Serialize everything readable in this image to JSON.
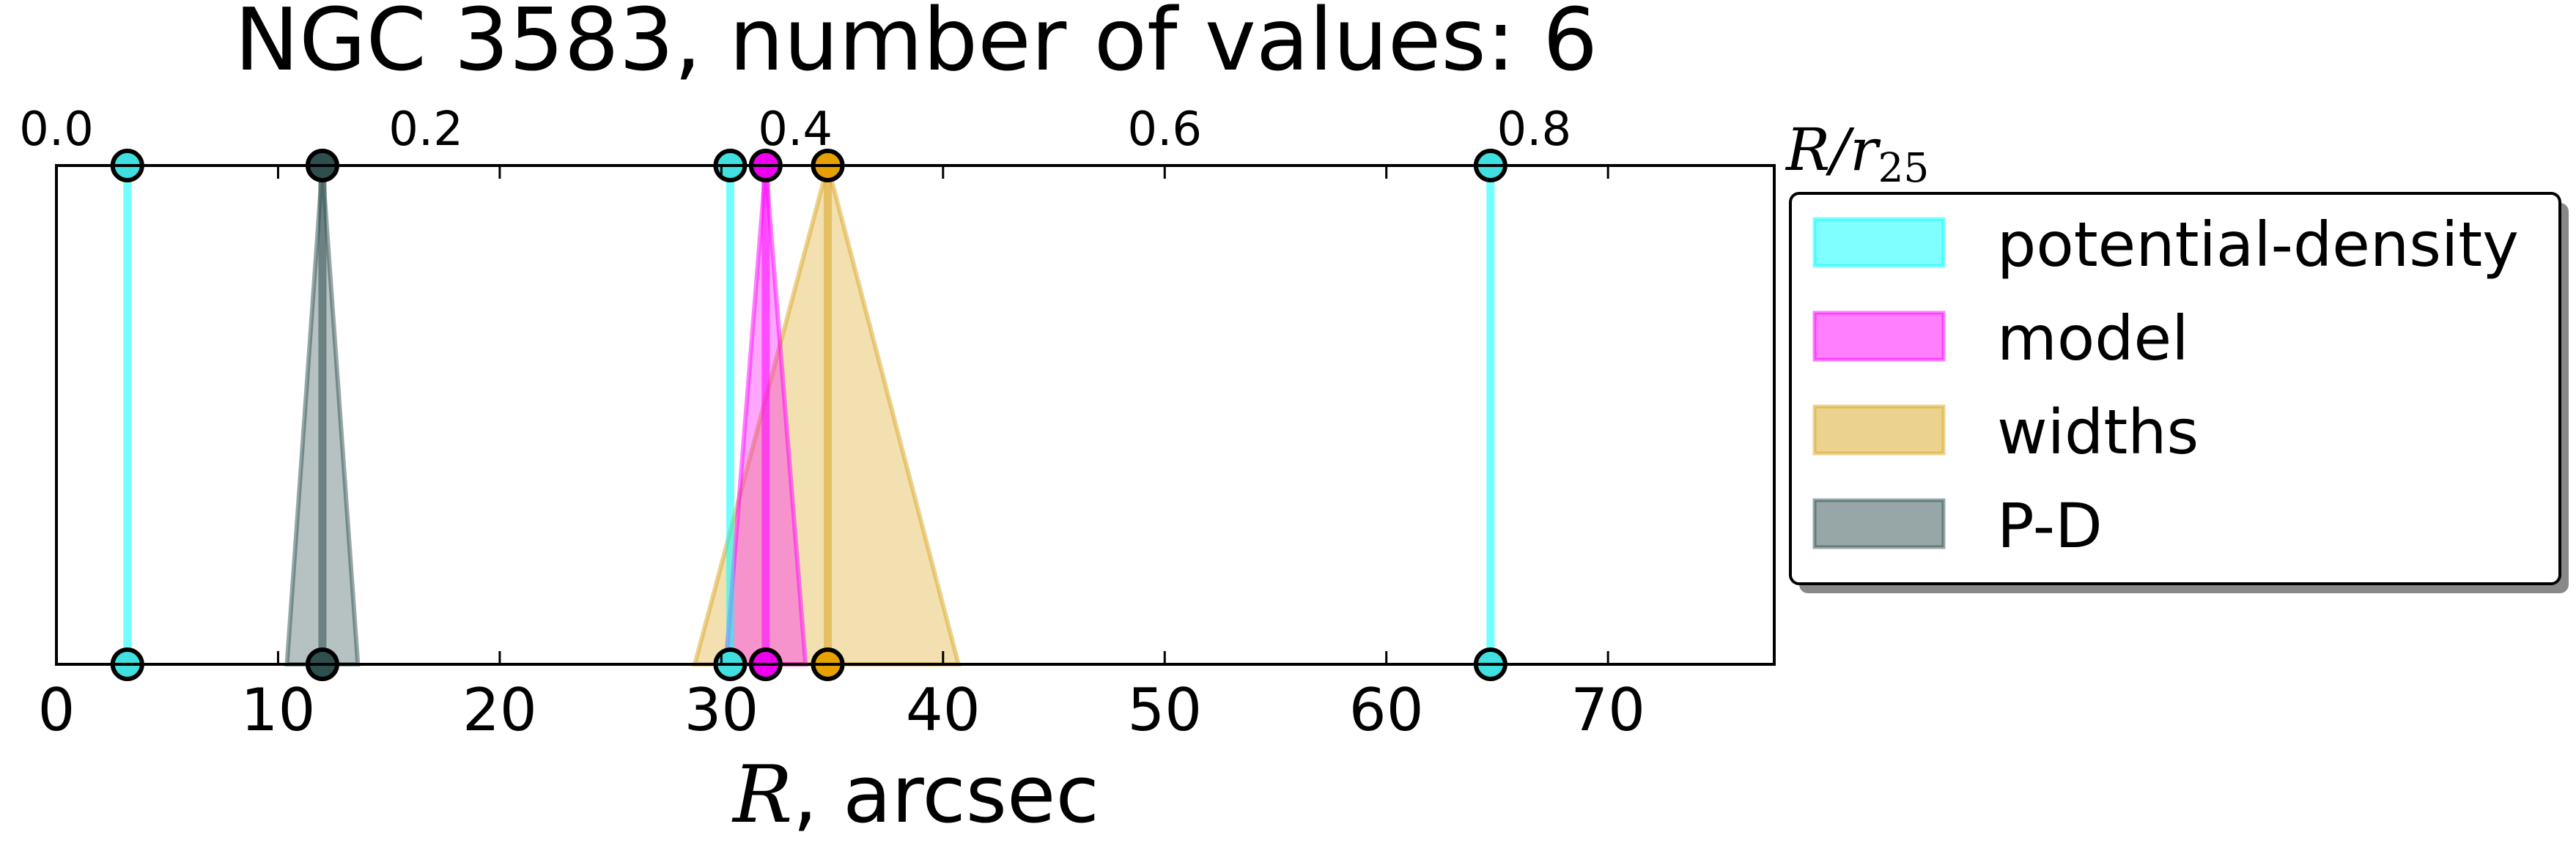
{
  "chart_data": {
    "type": "scatter",
    "title": "NGC 3583, number of values: 6",
    "xlabel": "R, arcsec",
    "x2label": "R/r25",
    "x2label_main": "R/r",
    "x2label_sub": "25",
    "xlim": [
      0,
      77.5
    ],
    "x2lim": [
      0,
      0.93
    ],
    "xticks": [
      0,
      10,
      20,
      30,
      40,
      50,
      60,
      70
    ],
    "xticklabels": [
      "0",
      "10",
      "20",
      "30",
      "40",
      "50",
      "60",
      "70"
    ],
    "x2ticks": [
      0.0,
      0.2,
      0.4,
      0.6,
      0.8
    ],
    "x2ticklabels": [
      "0.0",
      "0.2",
      "0.4",
      "0.6",
      "0.8"
    ],
    "grid": false,
    "legend_position": "right",
    "series": [
      {
        "name": "potential-density",
        "color": "#00ffff",
        "edge": "#00ffff",
        "marker": "#40e0e0",
        "values": [
          {
            "x": 3.2,
            "xmin": 3.2,
            "xmax": 3.2
          },
          {
            "x": 30.4,
            "xmin": 30.4,
            "xmax": 30.4
          },
          {
            "x": 64.7,
            "xmin": 64.7,
            "xmax": 64.7
          }
        ]
      },
      {
        "name": "model",
        "color": "#ff00ff",
        "edge": "#ff00ff",
        "marker": "#ee00ee",
        "values": [
          {
            "x": 32.0,
            "xmin": 30.2,
            "xmax": 33.8
          }
        ]
      },
      {
        "name": "widths",
        "color": "#daa520",
        "edge": "#daa520",
        "marker": "#e6a000",
        "values": [
          {
            "x": 34.8,
            "xmin": 28.8,
            "xmax": 40.7
          }
        ]
      },
      {
        "name": "P-D",
        "color": "#2f4f4f",
        "edge": "#2f4f4f",
        "marker": "#2f4f4f",
        "values": [
          {
            "x": 12.0,
            "xmin": 10.4,
            "xmax": 13.6
          }
        ]
      }
    ]
  }
}
